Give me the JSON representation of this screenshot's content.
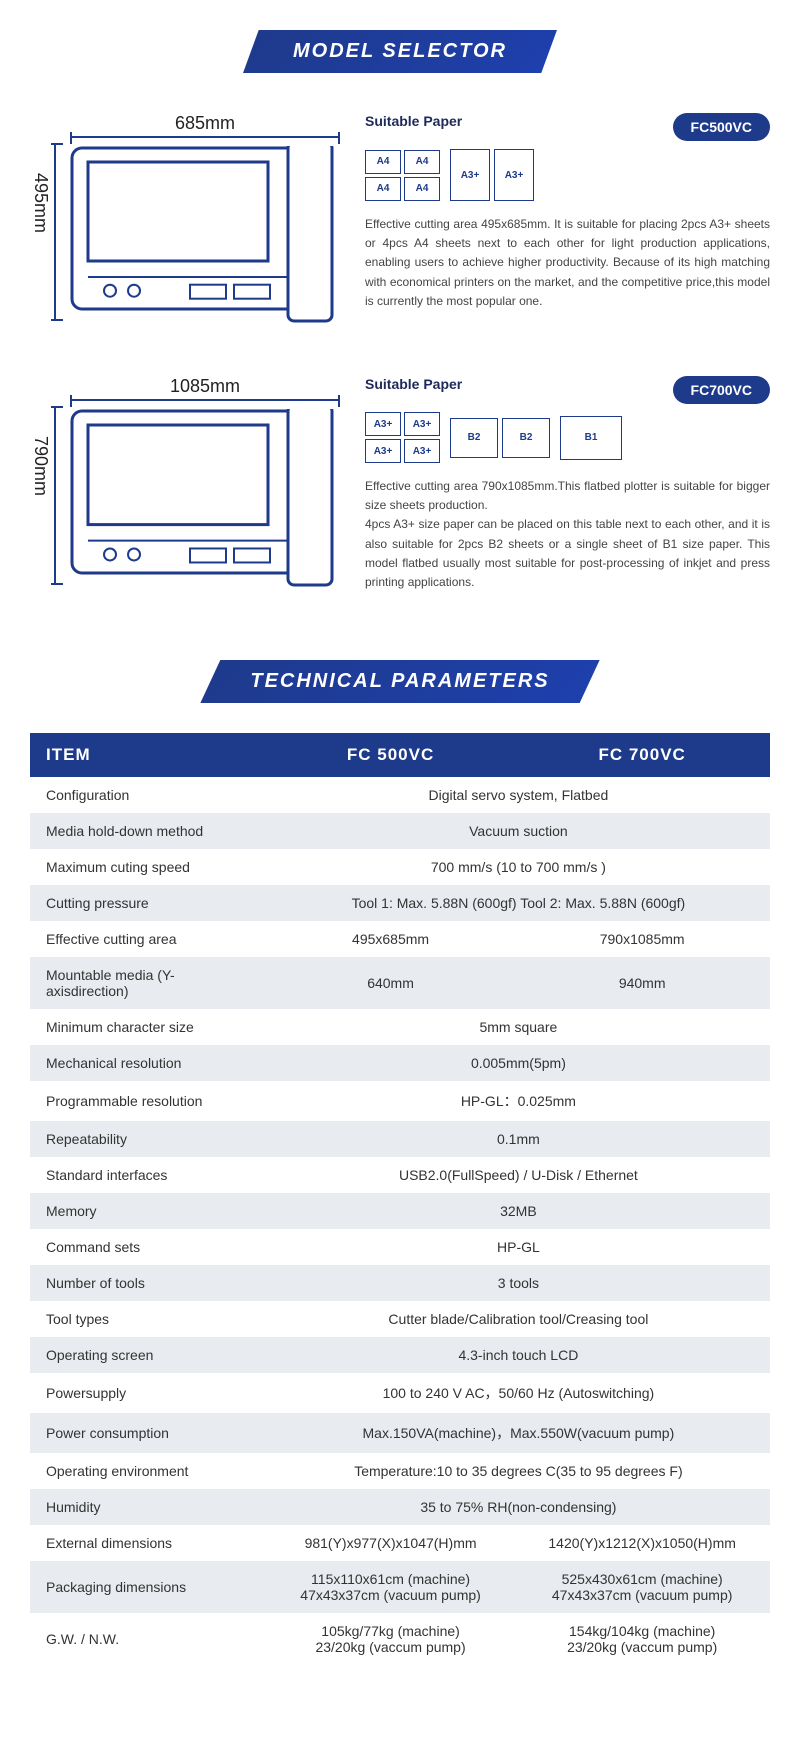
{
  "colors": {
    "primary": "#1e3a8a",
    "text": "#333",
    "altRow": "#e8ebef"
  },
  "banners": {
    "modelSelector": "MODEL SELECTOR",
    "techParams": "TECHNICAL PARAMETERS"
  },
  "models": [
    {
      "id": "fc500vc",
      "badge": "FC500VC",
      "width_label": "685mm",
      "height_label": "495mm",
      "width_mm": 685,
      "height_mm": 495,
      "suitable_label": "Suitable Paper",
      "paper_groups": [
        {
          "layout": "2x2",
          "boxes": [
            "A4",
            "A4",
            "A4",
            "A4"
          ],
          "box_class": "pb-sm"
        },
        {
          "layout": "row",
          "boxes": [
            "A3+",
            "A3+"
          ],
          "box_class": "pb-a3"
        }
      ],
      "description": "Effective cutting area 495x685mm. It is suitable for placing 2pcs A3+ sheets or 4pcs A4 sheets next to each other for light production applications, enabling users to achieve higher productivity. Because of its high matching with economical printers on the market, and the competitive price,this model is currently the most popular one."
    },
    {
      "id": "fc700vc",
      "badge": "FC700VC",
      "width_label": "1085mm",
      "height_label": "790mm",
      "width_mm": 1085,
      "height_mm": 790,
      "suitable_label": "Suitable Paper",
      "paper_groups": [
        {
          "layout": "2x2",
          "boxes": [
            "A3+",
            "A3+",
            "A3+",
            "A3+"
          ],
          "box_class": "pb-sm"
        },
        {
          "layout": "row",
          "boxes": [
            "B2",
            "B2"
          ],
          "box_class": "pb-b2"
        },
        {
          "layout": "row",
          "boxes": [
            "B1"
          ],
          "box_class": "pb-b1"
        }
      ],
      "description": "Effective cutting area 790x1085mm.This flatbed plotter is suitable for bigger size sheets production.\n4pcs A3+ size paper can be placed on this table next to each other, and it is also suitable for 2pcs B2 sheets or a single sheet of B1 size paper. This model flatbed usually most suitable for post-processing of inkjet and press printing applications."
    }
  ],
  "techTable": {
    "headers": [
      "ITEM",
      "FC 500VC",
      "FC 700VC"
    ],
    "rows": [
      {
        "label": "Configuration",
        "span": true,
        "value": "Digital servo system, Flatbed"
      },
      {
        "label": "Media hold-down method",
        "span": true,
        "value": "Vacuum suction"
      },
      {
        "label": "Maximum cuting speed",
        "span": true,
        "value": "700 mm/s (10 to 700 mm/s )"
      },
      {
        "label": "Cutting pressure",
        "span": true,
        "value": "Tool 1: Max. 5.88N (600gf)  Tool 2: Max. 5.88N (600gf)"
      },
      {
        "label": "Effective cutting area",
        "v1": "495x685mm",
        "v2": "790x1085mm"
      },
      {
        "label": "Mountable media (Y-axisdirection)",
        "v1": "640mm",
        "v2": "940mm"
      },
      {
        "label": "Minimum character size",
        "span": true,
        "value": "5mm square"
      },
      {
        "label": "Mechanical resolution",
        "span": true,
        "value": "0.005mm(5pm)"
      },
      {
        "label": "Programmable resolution",
        "span": true,
        "value": "HP-GL：0.025mm"
      },
      {
        "label": "Repeatability",
        "span": true,
        "value": "0.1mm"
      },
      {
        "label": "Standard interfaces",
        "span": true,
        "value": "USB2.0(FullSpeed) / U-Disk / Ethernet"
      },
      {
        "label": "Memory",
        "span": true,
        "value": "32MB"
      },
      {
        "label": "Command sets",
        "span": true,
        "value": "HP-GL"
      },
      {
        "label": "Number of tools",
        "span": true,
        "value": "3 tools"
      },
      {
        "label": "Tool types",
        "span": true,
        "value": "Cutter blade/Calibration tool/Creasing tool"
      },
      {
        "label": "Operating screen",
        "span": true,
        "value": "4.3-inch touch LCD"
      },
      {
        "label": "Powersupply",
        "span": true,
        "value": "100 to 240 V AC，50/60 Hz (Autoswitching)"
      },
      {
        "label": "Power consumption",
        "span": true,
        "value": "Max.150VA(machine)，Max.550W(vacuum pump)"
      },
      {
        "label": "Operating environment",
        "span": true,
        "value": "Temperature:10 to 35 degrees C(35 to 95 degrees F)"
      },
      {
        "label": "Humidity",
        "span": true,
        "value": "35 to 75% RH(non-condensing)"
      },
      {
        "label": "External dimensions",
        "v1": "981(Y)x977(X)x1047(H)mm",
        "v2": "1420(Y)x1212(X)x1050(H)mm"
      },
      {
        "label": "Packaging dimensions",
        "v1": "115x110x61cm (machine)\n47x43x37cm (vacuum pump)",
        "v2": "525x430x61cm (machine)\n47x43x37cm (vacuum pump)"
      },
      {
        "label": "G.W. / N.W.",
        "v1": "105kg/77kg (machine)\n23/20kg (vaccum pump)",
        "v2": "154kg/104kg (machine)\n23/20kg (vaccum pump)"
      }
    ]
  }
}
